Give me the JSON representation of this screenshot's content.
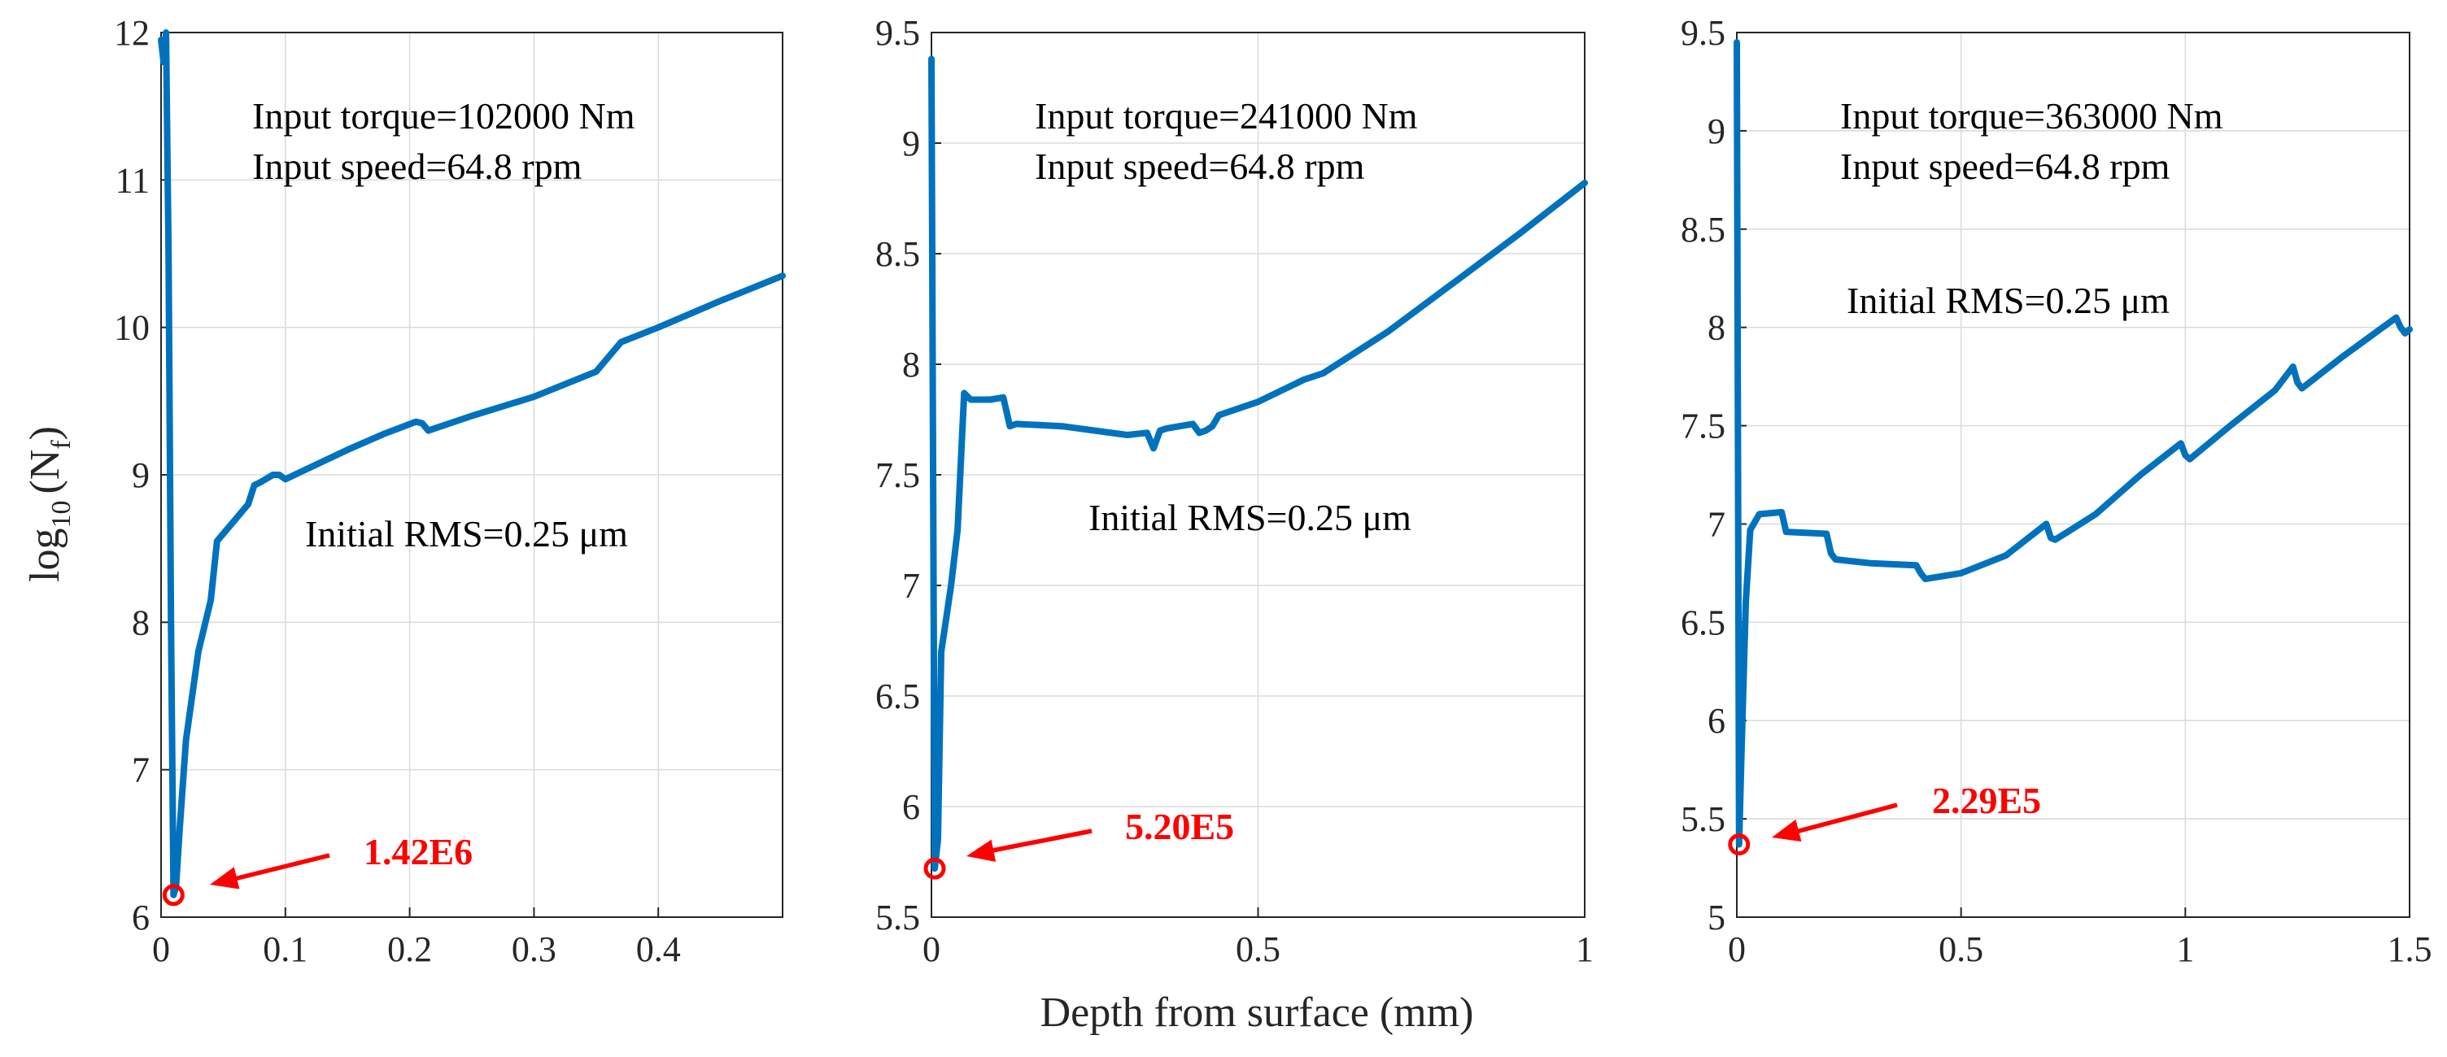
{
  "xlabel": "Depth from surface (mm)",
  "ylabel_main": "log",
  "ylabel_sub": "10",
  "ylabel_paren": "(N",
  "ylabel_subf": "f",
  "ylabel_close": ")",
  "chart_data": [
    {
      "type": "line",
      "title": "",
      "xlim": [
        0,
        0.5
      ],
      "ylim": [
        6,
        12
      ],
      "xticks": [
        0,
        0.1,
        0.2,
        0.3,
        0.4
      ],
      "xtick_labels": [
        "0",
        "0.1",
        "0.2",
        "0.3",
        "0.4"
      ],
      "yticks": [
        6,
        7,
        8,
        9,
        10,
        11,
        12
      ],
      "ytick_labels": [
        "6",
        "7",
        "8",
        "9",
        "10",
        "11",
        "12"
      ],
      "grid": true,
      "annotations": [
        "Input torque=102000 Nm",
        "Input speed=64.8 rpm",
        "Initial RMS=0.25 μm"
      ],
      "callout": "1.42E6",
      "min_point": {
        "x": 0.01,
        "y": 6.15
      },
      "series": [
        {
          "name": "log10(Nf)",
          "x": [
            0,
            0.002,
            0.004,
            0.006,
            0.008,
            0.01,
            0.012,
            0.015,
            0.02,
            0.03,
            0.04,
            0.045,
            0.05,
            0.055,
            0.06,
            0.065,
            0.07,
            0.075,
            0.08,
            0.09,
            0.095,
            0.1,
            0.12,
            0.15,
            0.18,
            0.205,
            0.21,
            0.215,
            0.25,
            0.3,
            0.35,
            0.36,
            0.365,
            0.37,
            0.4,
            0.45,
            0.5
          ],
          "y": [
            11.95,
            11.8,
            12.0,
            10.5,
            8.0,
            6.15,
            6.2,
            6.6,
            7.2,
            7.8,
            8.15,
            8.55,
            8.6,
            8.65,
            8.7,
            8.75,
            8.8,
            8.93,
            8.95,
            9.0,
            9.0,
            8.97,
            9.05,
            9.17,
            9.28,
            9.36,
            9.35,
            9.3,
            9.4,
            9.53,
            9.7,
            9.8,
            9.85,
            9.9,
            10.0,
            10.18,
            10.35
          ]
        }
      ]
    },
    {
      "type": "line",
      "title": "",
      "xlim": [
        0,
        1
      ],
      "ylim": [
        5.5,
        9.5
      ],
      "xticks": [
        0,
        0.5,
        1
      ],
      "xtick_labels": [
        "0",
        "0.5",
        "1"
      ],
      "yticks": [
        5.5,
        6,
        6.5,
        7,
        7.5,
        8,
        8.5,
        9,
        9.5
      ],
      "ytick_labels": [
        "5.5",
        "6",
        "6.5",
        "7",
        "7.5",
        "8",
        "8.5",
        "9",
        "9.5"
      ],
      "grid": true,
      "annotations": [
        "Input torque=241000 Nm",
        "Input speed=64.8 rpm",
        "Initial RMS=0.25 μm"
      ],
      "callout": "5.20E5",
      "min_point": {
        "x": 0.005,
        "y": 5.72
      },
      "series": [
        {
          "name": "log10(Nf)",
          "x": [
            0,
            0.005,
            0.01,
            0.015,
            0.02,
            0.03,
            0.04,
            0.05,
            0.06,
            0.09,
            0.11,
            0.12,
            0.13,
            0.2,
            0.3,
            0.33,
            0.34,
            0.35,
            0.36,
            0.38,
            0.4,
            0.41,
            0.42,
            0.43,
            0.44,
            0.5,
            0.57,
            0.6,
            0.7,
            0.8,
            0.9,
            1.0
          ],
          "y": [
            9.38,
            5.72,
            5.85,
            6.7,
            6.8,
            7.0,
            7.25,
            7.87,
            7.84,
            7.84,
            7.85,
            7.72,
            7.73,
            7.72,
            7.68,
            7.69,
            7.62,
            7.7,
            7.71,
            7.72,
            7.73,
            7.69,
            7.7,
            7.72,
            7.77,
            7.83,
            7.93,
            7.96,
            8.15,
            8.37,
            8.59,
            8.82
          ]
        }
      ]
    },
    {
      "type": "line",
      "title": "",
      "xlim": [
        0,
        1.5
      ],
      "ylim": [
        5,
        9.5
      ],
      "xticks": [
        0,
        0.5,
        1,
        1.5
      ],
      "xtick_labels": [
        "0",
        "0.5",
        "1",
        "1.5"
      ],
      "yticks": [
        5,
        5.5,
        6,
        6.5,
        7,
        7.5,
        8,
        8.5,
        9,
        9.5
      ],
      "ytick_labels": [
        "5",
        "5.5",
        "6",
        "6.5",
        "7",
        "7.5",
        "8",
        "8.5",
        "9",
        "9.5"
      ],
      "grid": true,
      "annotations": [
        "Input torque=363000 Nm",
        "Input speed=64.8 rpm",
        "Initial RMS=0.25 μm"
      ],
      "callout": "2.29E5",
      "min_point": {
        "x": 0.005,
        "y": 5.37
      },
      "series": [
        {
          "name": "log10(Nf)",
          "x": [
            0,
            0.005,
            0.01,
            0.02,
            0.03,
            0.05,
            0.1,
            0.11,
            0.2,
            0.21,
            0.22,
            0.3,
            0.4,
            0.41,
            0.42,
            0.5,
            0.6,
            0.69,
            0.7,
            0.71,
            0.8,
            0.9,
            0.99,
            1.0,
            1.01,
            1.1,
            1.2,
            1.24,
            1.25,
            1.26,
            1.35,
            1.47,
            1.48,
            1.49,
            1.5
          ],
          "y": [
            9.45,
            5.37,
            5.8,
            6.6,
            6.97,
            7.05,
            7.06,
            6.96,
            6.95,
            6.85,
            6.82,
            6.8,
            6.79,
            6.75,
            6.72,
            6.75,
            6.84,
            7.0,
            6.93,
            6.92,
            7.05,
            7.25,
            7.41,
            7.35,
            7.33,
            7.5,
            7.68,
            7.8,
            7.72,
            7.69,
            7.85,
            8.05,
            8.0,
            7.97,
            7.99
          ]
        }
      ]
    }
  ]
}
